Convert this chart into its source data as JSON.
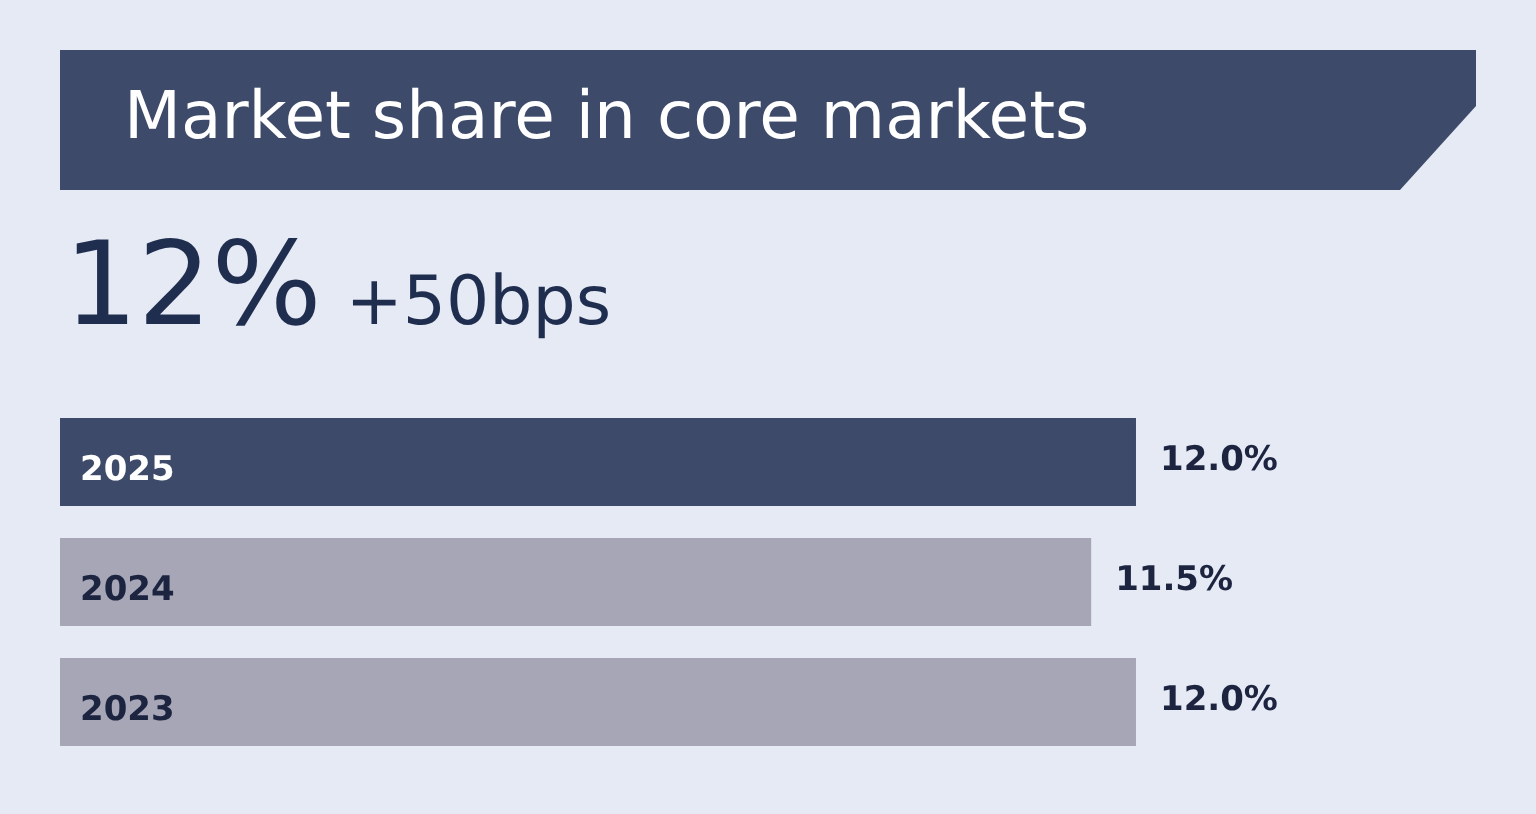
{
  "chart_data": {
    "type": "bar",
    "orientation": "horizontal",
    "title": "Market share in core markets",
    "subtitle": "12%",
    "annotations": [
      "+50bps"
    ],
    "categories": [
      "2025",
      "2024",
      "2023"
    ],
    "values": [
      12,
      11.5,
      12
    ],
    "colors": [
      "#3e4a69",
      "#a6a6b6",
      "#a6a6b6"
    ],
    "value_labels": [
      "12.0%",
      "11.5%",
      "12.0%"
    ]
  }
}
